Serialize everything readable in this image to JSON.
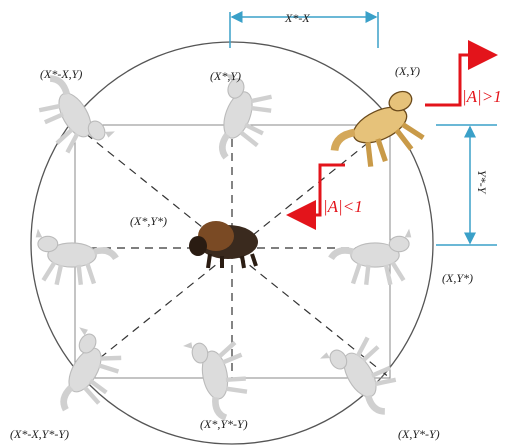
{
  "labels": {
    "top_left": "(X*-X,Y)",
    "top_middle": "(X*,Y)",
    "top_right": "(X,Y)",
    "center": "(X*,Y*)",
    "right_middle": "(X,Y*)",
    "bottom_left": "(X*-X,Y*-Y)",
    "bottom_middle": "(X*,Y*-Y)",
    "bottom_right": "(X,Y*-Y)"
  },
  "dimensions": {
    "horizontal": "X*-X",
    "vertical": "Y*-Y"
  },
  "conditions": {
    "explore": "|A|>1",
    "exploit": "|A|<1"
  }
}
